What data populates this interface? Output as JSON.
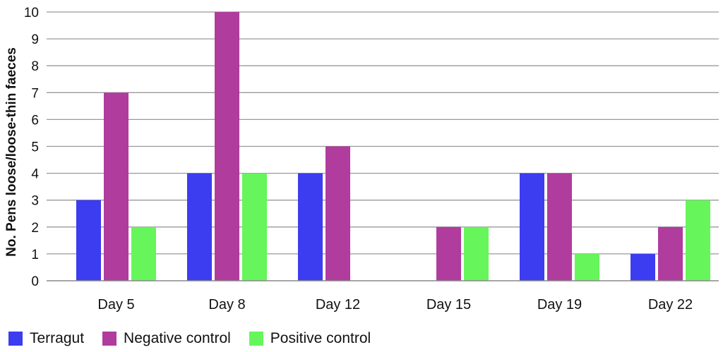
{
  "chart_data": {
    "type": "bar",
    "categories": [
      "Day 5",
      "Day 8",
      "Day 12",
      "Day 15",
      "Day 19",
      "Day 22"
    ],
    "series": [
      {
        "name": "Terragut",
        "color": "#3c3cf0",
        "values": [
          3,
          4,
          4,
          0,
          4,
          1
        ]
      },
      {
        "name": "Negative control",
        "color": "#b03c9e",
        "values": [
          7,
          10,
          5,
          2,
          4,
          2
        ]
      },
      {
        "name": "Positive control",
        "color": "#66f55a",
        "values": [
          2,
          4,
          0,
          2,
          1,
          3
        ]
      }
    ],
    "ylabel": "No. Pens loose/loose-thin faeces",
    "ylim": [
      0,
      10
    ],
    "yticks": [
      "0",
      "1",
      "2",
      "3",
      "4",
      "5",
      "6",
      "7",
      "8",
      "9",
      "10"
    ],
    "grid": true,
    "legend_position": "bottom-left"
  }
}
